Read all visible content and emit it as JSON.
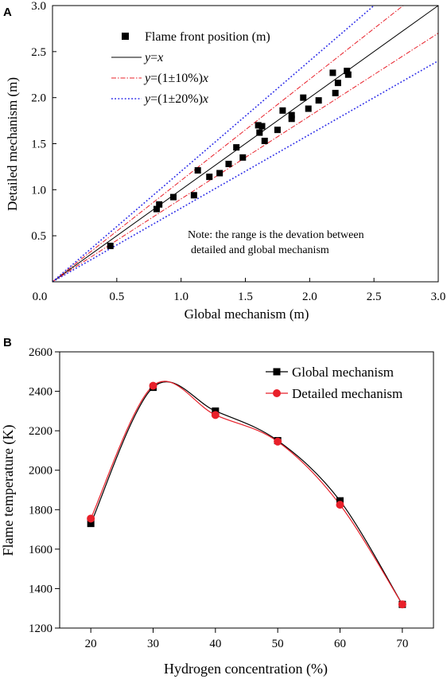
{
  "chart_data": [
    {
      "panel_label": "A",
      "type": "scatter",
      "xlabel": "Global mechanism (m)",
      "ylabel": "Detailed mechanism (m)",
      "xlim": [
        0,
        3.0
      ],
      "ylim": [
        0,
        3.0
      ],
      "xticks": [
        "0.0",
        "0.5",
        "1.0",
        "1.5",
        "2.0",
        "2.5",
        "3.0"
      ],
      "yticks": [
        "0.0",
        "0.5",
        "1.0",
        "1.5",
        "2.0",
        "2.5",
        "3.0"
      ],
      "grid": false,
      "legend": {
        "position": "top-left",
        "entries": [
          {
            "style": "square",
            "label": "Flame front position (m)"
          },
          {
            "style": "solid",
            "label_italic": "y",
            "label_rest": "=",
            "label_italic2": "x"
          },
          {
            "style": "dashdot",
            "label_italic": "y",
            "label_rest": "=(1±10%)",
            "label_italic2": "x"
          },
          {
            "style": "dotted",
            "label_italic": "y",
            "label_rest": "=(1±20%)",
            "label_italic2": "x"
          }
        ]
      },
      "note": [
        "Note: the range is the devation between",
        "detailed and global mechanism"
      ],
      "colors": {
        "points": "#000000",
        "identity": "#000000",
        "ten_percent": "#e8202a",
        "twenty_percent": "#2a2ae8"
      },
      "reference_lines": [
        {
          "slope": 1.0,
          "style": "solid"
        },
        {
          "slope": 1.1,
          "style": "dashdot"
        },
        {
          "slope": 0.9,
          "style": "dashdot"
        },
        {
          "slope": 1.2,
          "style": "dotted"
        },
        {
          "slope": 0.8,
          "style": "dotted"
        }
      ],
      "series": [
        {
          "name": "Flame front position (m)",
          "points": [
            [
              0.45,
              0.39
            ],
            [
              0.81,
              0.79
            ],
            [
              0.83,
              0.84
            ],
            [
              0.94,
              0.92
            ],
            [
              1.1,
              0.94
            ],
            [
              1.13,
              1.21
            ],
            [
              1.22,
              1.14
            ],
            [
              1.3,
              1.18
            ],
            [
              1.37,
              1.28
            ],
            [
              1.43,
              1.46
            ],
            [
              1.48,
              1.35
            ],
            [
              1.6,
              1.7
            ],
            [
              1.61,
              1.62
            ],
            [
              1.63,
              1.69
            ],
            [
              1.65,
              1.53
            ],
            [
              1.75,
              1.65
            ],
            [
              1.79,
              1.86
            ],
            [
              1.86,
              1.81
            ],
            [
              1.86,
              1.77
            ],
            [
              1.95,
              2.0
            ],
            [
              1.99,
              1.88
            ],
            [
              2.07,
              1.97
            ],
            [
              2.18,
              2.27
            ],
            [
              2.2,
              2.05
            ],
            [
              2.22,
              2.16
            ],
            [
              2.29,
              2.29
            ],
            [
              2.3,
              2.25
            ]
          ]
        }
      ]
    },
    {
      "panel_label": "B",
      "type": "line",
      "xlabel": "Hydrogen concentration (%)",
      "ylabel": "Flame temperature (K)",
      "xlim": [
        15,
        75
      ],
      "ylim": [
        1200,
        2600
      ],
      "xticks": [
        "20",
        "30",
        "40",
        "50",
        "60",
        "70"
      ],
      "yticks": [
        "1200",
        "1400",
        "1600",
        "1800",
        "2000",
        "2200",
        "2400",
        "2600"
      ],
      "grid": false,
      "legend": {
        "position": "top-right"
      },
      "categories": [
        20,
        30,
        40,
        50,
        60,
        70
      ],
      "series": [
        {
          "name": "Global mechanism",
          "marker": "square",
          "color": "#000000",
          "values": [
            1730,
            2420,
            2300,
            2150,
            1845,
            1320
          ]
        },
        {
          "name": "Detailed mechanism",
          "marker": "circle",
          "color": "#e8202a",
          "values": [
            1755,
            2428,
            2280,
            2145,
            1825,
            1320
          ]
        }
      ]
    }
  ]
}
